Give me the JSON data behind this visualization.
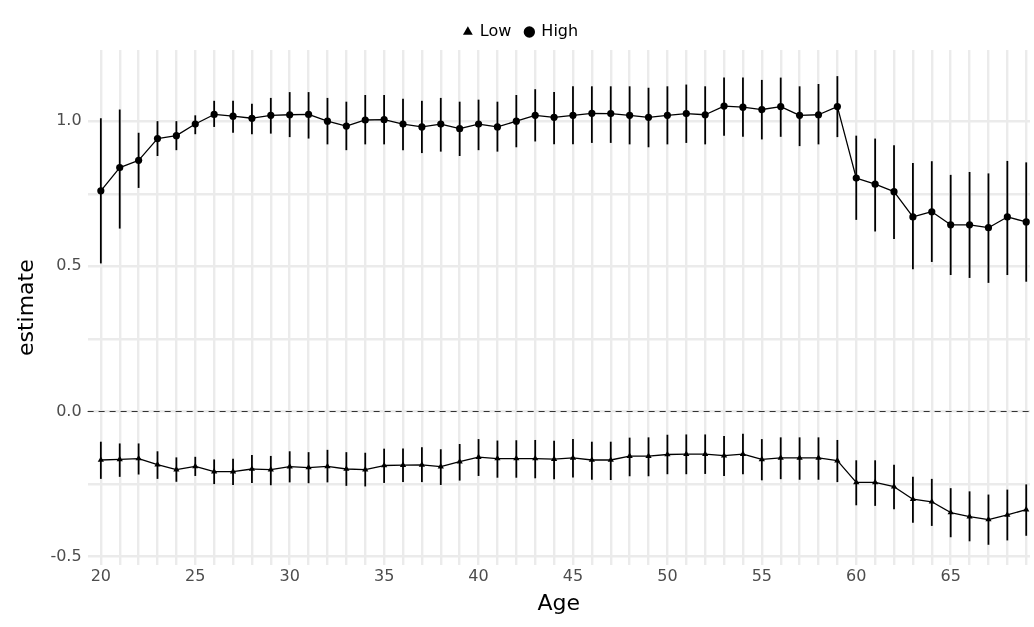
{
  "chart_data": {
    "type": "line",
    "xlabel": "Age",
    "ylabel": "estimate",
    "x": [
      20,
      21,
      22,
      23,
      24,
      25,
      26,
      27,
      28,
      29,
      30,
      31,
      32,
      33,
      34,
      35,
      36,
      37,
      38,
      39,
      40,
      41,
      42,
      43,
      44,
      45,
      46,
      47,
      48,
      49,
      50,
      51,
      52,
      53,
      54,
      55,
      56,
      57,
      58,
      59,
      60,
      61,
      62,
      63,
      64,
      65,
      66,
      67,
      68,
      69
    ],
    "series": [
      {
        "name": "Low",
        "color": "#000000",
        "marker": "triangle",
        "values": [
          -0.167,
          -0.165,
          -0.162,
          -0.183,
          -0.2,
          -0.189,
          -0.207,
          -0.207,
          -0.198,
          -0.2,
          -0.19,
          -0.193,
          -0.189,
          -0.198,
          -0.2,
          -0.186,
          -0.185,
          -0.184,
          -0.19,
          -0.173,
          -0.157,
          -0.162,
          -0.162,
          -0.162,
          -0.164,
          -0.16,
          -0.167,
          -0.167,
          -0.154,
          -0.154,
          -0.148,
          -0.147,
          -0.147,
          -0.152,
          -0.147,
          -0.165,
          -0.16,
          -0.16,
          -0.16,
          -0.169,
          -0.244,
          -0.244,
          -0.259,
          -0.302,
          -0.311,
          -0.348,
          -0.362,
          -0.372,
          -0.356,
          -0.338
        ],
        "errors": [
          [
            -0.232,
            -0.104
          ],
          [
            -0.225,
            -0.11
          ],
          [
            -0.217,
            -0.11
          ],
          [
            -0.232,
            -0.137
          ],
          [
            -0.242,
            -0.158
          ],
          [
            -0.222,
            -0.156
          ],
          [
            -0.25,
            -0.165
          ],
          [
            -0.253,
            -0.163
          ],
          [
            -0.246,
            -0.15
          ],
          [
            -0.254,
            -0.153
          ],
          [
            -0.244,
            -0.137
          ],
          [
            -0.247,
            -0.14
          ],
          [
            -0.244,
            -0.132
          ],
          [
            -0.256,
            -0.14
          ],
          [
            -0.258,
            -0.142
          ],
          [
            -0.246,
            -0.128
          ],
          [
            -0.243,
            -0.127
          ],
          [
            -0.243,
            -0.123
          ],
          [
            -0.253,
            -0.13
          ],
          [
            -0.238,
            -0.112
          ],
          [
            -0.222,
            -0.095
          ],
          [
            -0.228,
            -0.1
          ],
          [
            -0.228,
            -0.099
          ],
          [
            -0.23,
            -0.098
          ],
          [
            -0.233,
            -0.101
          ],
          [
            -0.227,
            -0.095
          ],
          [
            -0.235,
            -0.104
          ],
          [
            -0.236,
            -0.104
          ],
          [
            -0.223,
            -0.09
          ],
          [
            -0.223,
            -0.089
          ],
          [
            -0.216,
            -0.08
          ],
          [
            -0.216,
            -0.079
          ],
          [
            -0.215,
            -0.079
          ],
          [
            -0.222,
            -0.084
          ],
          [
            -0.216,
            -0.077
          ],
          [
            -0.237,
            -0.095
          ],
          [
            -0.233,
            -0.089
          ],
          [
            -0.235,
            -0.089
          ],
          [
            -0.235,
            -0.089
          ],
          [
            -0.243,
            -0.098
          ],
          [
            -0.323,
            -0.168
          ],
          [
            -0.325,
            -0.168
          ],
          [
            -0.337,
            -0.183
          ],
          [
            -0.383,
            -0.225
          ],
          [
            -0.394,
            -0.232
          ],
          [
            -0.433,
            -0.264
          ],
          [
            -0.447,
            -0.275
          ],
          [
            -0.459,
            -0.286
          ],
          [
            -0.444,
            -0.269
          ],
          [
            -0.428,
            -0.251
          ]
        ]
      },
      {
        "name": "High",
        "color": "#000000",
        "marker": "circle",
        "values": [
          0.76,
          0.84,
          0.865,
          0.94,
          0.95,
          0.99,
          1.023,
          1.017,
          1.01,
          1.02,
          1.022,
          1.023,
          1.0,
          0.983,
          1.004,
          1.005,
          0.99,
          0.98,
          0.99,
          0.974,
          0.99,
          0.98,
          1.0,
          1.02,
          1.013,
          1.02,
          1.027,
          1.026,
          1.02,
          1.013,
          1.02,
          1.026,
          1.022,
          1.052,
          1.048,
          1.04,
          1.05,
          1.02,
          1.022,
          1.05,
          0.804,
          0.783,
          0.757,
          0.67,
          0.688,
          0.643,
          0.643,
          0.633,
          0.67,
          0.653
        ],
        "errors": [
          [
            0.51,
            1.01
          ],
          [
            0.63,
            1.04
          ],
          [
            0.77,
            0.96
          ],
          [
            0.88,
            1.0
          ],
          [
            0.9,
            1.0
          ],
          [
            0.955,
            1.02
          ],
          [
            0.98,
            1.07
          ],
          [
            0.96,
            1.07
          ],
          [
            0.955,
            1.06
          ],
          [
            0.957,
            1.08
          ],
          [
            0.945,
            1.1
          ],
          [
            0.94,
            1.1
          ],
          [
            0.92,
            1.08
          ],
          [
            0.9,
            1.067
          ],
          [
            0.92,
            1.09
          ],
          [
            0.92,
            1.09
          ],
          [
            0.9,
            1.077
          ],
          [
            0.89,
            1.07
          ],
          [
            0.895,
            1.08
          ],
          [
            0.88,
            1.067
          ],
          [
            0.9,
            1.074
          ],
          [
            0.895,
            1.067
          ],
          [
            0.91,
            1.09
          ],
          [
            0.93,
            1.11
          ],
          [
            0.92,
            1.1
          ],
          [
            0.92,
            1.12
          ],
          [
            0.925,
            1.12
          ],
          [
            0.925,
            1.12
          ],
          [
            0.92,
            1.12
          ],
          [
            0.91,
            1.115
          ],
          [
            0.92,
            1.12
          ],
          [
            0.925,
            1.126
          ],
          [
            0.92,
            1.12
          ],
          [
            0.95,
            1.15
          ],
          [
            0.946,
            1.15
          ],
          [
            0.937,
            1.142
          ],
          [
            0.946,
            1.15
          ],
          [
            0.914,
            1.12
          ],
          [
            0.92,
            1.128
          ],
          [
            0.945,
            1.155
          ],
          [
            0.66,
            0.95
          ],
          [
            0.62,
            0.94
          ],
          [
            0.594,
            0.917
          ],
          [
            0.49,
            0.856
          ],
          [
            0.515,
            0.862
          ],
          [
            0.47,
            0.815
          ],
          [
            0.46,
            0.825
          ],
          [
            0.443,
            0.82
          ],
          [
            0.47,
            0.863
          ],
          [
            0.447,
            0.858
          ]
        ]
      }
    ],
    "xlim": [
      19.3,
      69.2
    ],
    "xticks": [
      20,
      {
        "value": 21,
        "label": null
      },
      {
        "value": 22,
        "label": null
      },
      {
        "value": 23,
        "label": null
      },
      {
        "value": 24,
        "label": null
      },
      25,
      {
        "value": 26,
        "label": null
      },
      {
        "value": 27,
        "label": null
      },
      {
        "value": 28,
        "label": null
      },
      {
        "value": 29,
        "label": null
      },
      30,
      {
        "value": 31,
        "label": null
      },
      {
        "value": 32,
        "label": null
      },
      {
        "value": 33,
        "label": null
      },
      {
        "value": 34,
        "label": null
      },
      35,
      {
        "value": 36,
        "label": null
      },
      {
        "value": 37,
        "label": null
      },
      {
        "value": 38,
        "label": null
      },
      {
        "value": 39,
        "label": null
      },
      40,
      {
        "value": 41,
        "label": null
      },
      {
        "value": 42,
        "label": null
      },
      {
        "value": 43,
        "label": null
      },
      {
        "value": 44,
        "label": null
      },
      45,
      {
        "value": 46,
        "label": null
      },
      {
        "value": 47,
        "label": null
      },
      {
        "value": 48,
        "label": null
      },
      {
        "value": 49,
        "label": null
      },
      50,
      {
        "value": 51,
        "label": null
      },
      {
        "value": 52,
        "label": null
      },
      {
        "value": 53,
        "label": null
      },
      {
        "value": 54,
        "label": null
      },
      55,
      {
        "value": 56,
        "label": null
      },
      {
        "value": 57,
        "label": null
      },
      {
        "value": 58,
        "label": null
      },
      {
        "value": 59,
        "label": null
      },
      60,
      {
        "value": 61,
        "label": null
      },
      {
        "value": 62,
        "label": null
      },
      {
        "value": 63,
        "label": null
      },
      {
        "value": 64,
        "label": null
      },
      65,
      {
        "value": 66,
        "label": null
      },
      {
        "value": 67,
        "label": null
      },
      {
        "value": 68,
        "label": null
      },
      {
        "value": 69,
        "label": null
      }
    ],
    "ylim": [
      -0.53,
      1.245
    ],
    "yticks": [
      -0.5,
      {
        "value": -0.25,
        "label": null
      },
      {
        "value": 0,
        "label": "0.0"
      },
      {
        "value": 0.25,
        "label": null
      },
      0.5,
      {
        "value": 0.75,
        "label": null
      },
      {
        "value": 1,
        "label": "1.0"
      }
    ],
    "ref_lines": [
      {
        "axis": "y",
        "value": 0,
        "color": "#333333",
        "line_style": "dashed"
      }
    ],
    "grid": true,
    "legend": "top",
    "line_style": "solid"
  }
}
